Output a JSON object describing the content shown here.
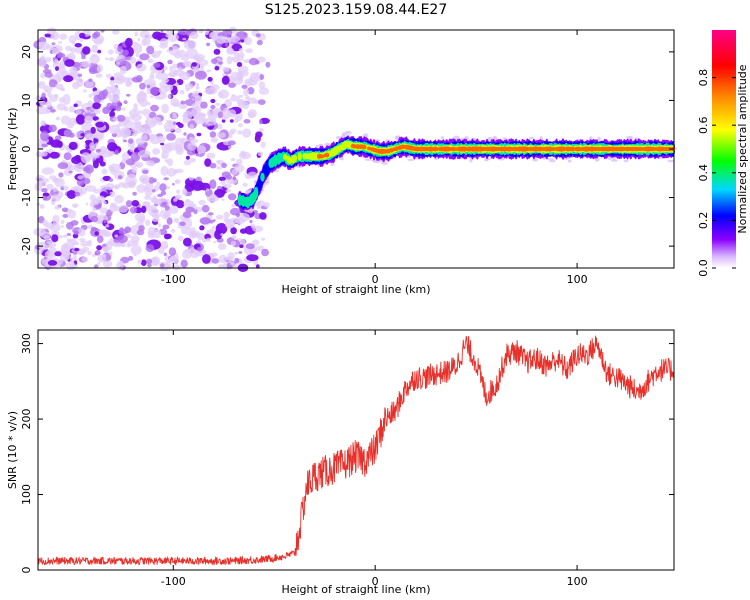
{
  "title": "S125.2023.159.08.44.E27",
  "chart_data": [
    {
      "type": "heatmap",
      "xlabel": "Height of straight line (km)",
      "ylabel": "Frequency (Hz)",
      "xlim": [
        -167,
        148
      ],
      "ylim": [
        -24.5,
        24.5
      ],
      "xticks": [
        -100,
        0,
        100
      ],
      "xtick_labels": [
        "-100",
        "0",
        "100"
      ],
      "yticks": [
        -20,
        -10,
        0,
        10,
        20
      ],
      "ytick_labels": [
        "-20",
        "-10",
        "0",
        "10",
        "20"
      ],
      "grid": false,
      "colorbar": {
        "label": "Normalized spectral amplitude",
        "range": [
          0,
          1
        ],
        "ticks": [
          0.0,
          0.2,
          0.4,
          0.6,
          0.8
        ],
        "tick_labels": [
          "0.0",
          "0.2",
          "0.4",
          "0.6",
          "0.8"
        ],
        "colormap": [
          "#ffffff",
          "#8a00ff",
          "#0000ff",
          "#00d8ff",
          "#00ff00",
          "#ffff00",
          "#ff8800",
          "#ff0000",
          "#ff00aa"
        ]
      },
      "noise_region_x": [
        -167,
        -52
      ],
      "ridge": {
        "x": [
          -67,
          -63,
          -60,
          -57,
          -55,
          -52,
          -48,
          -45,
          -42,
          -38,
          -34,
          -30,
          -26,
          -22,
          -18,
          -14,
          -10,
          -6,
          -2,
          2,
          6,
          10,
          14,
          20,
          40,
          60,
          68,
          80,
          95,
          105,
          110,
          120,
          130,
          140,
          148
        ],
        "y": [
          -10.5,
          -11,
          -10,
          -7,
          -5,
          -3,
          -2,
          -1.5,
          -2.5,
          -1.5,
          -1.5,
          -1.5,
          -1.5,
          -1,
          0,
          1,
          0.5,
          0.5,
          0,
          -0.5,
          -0.5,
          0,
          0.5,
          0,
          0,
          0,
          0,
          0,
          0,
          0,
          0,
          0,
          0,
          0,
          0
        ],
        "peak": [
          0.55,
          0.5,
          0.45,
          0.4,
          0.4,
          0.45,
          0.55,
          0.6,
          0.55,
          0.6,
          0.7,
          0.75,
          0.8,
          0.75,
          0.7,
          0.7,
          0.75,
          0.85,
          0.9,
          0.95,
          0.9,
          0.85,
          0.85,
          0.9,
          0.92,
          0.93,
          0.95,
          0.93,
          0.92,
          0.9,
          0.92,
          0.93,
          0.92,
          0.93,
          0.9
        ]
      }
    },
    {
      "type": "line",
      "xlabel": "Height of straight line (km)",
      "ylabel": "SNR (10 * v/v)",
      "xlim": [
        -167,
        148
      ],
      "ylim": [
        0,
        318
      ],
      "xticks": [
        -100,
        0,
        100
      ],
      "xtick_labels": [
        "-100",
        "0",
        "100"
      ],
      "yticks": [
        0,
        100,
        200,
        300
      ],
      "ytick_labels": [
        "0",
        "100",
        "200",
        "300"
      ],
      "grid": false,
      "color": "#e8302a",
      "series": [
        {
          "x": [
            -167,
            -150,
            -130,
            -110,
            -90,
            -70,
            -55,
            -45,
            -40,
            -37,
            -34,
            -30,
            -25,
            -20,
            -15,
            -10,
            -5,
            0,
            5,
            10,
            15,
            20,
            25,
            30,
            35,
            40,
            45,
            50,
            55,
            60,
            65,
            70,
            75,
            80,
            85,
            90,
            95,
            100,
            105,
            110,
            115,
            120,
            125,
            130,
            135,
            140,
            148
          ],
          "y": [
            12,
            12,
            12,
            12,
            12,
            12,
            14,
            18,
            22,
            60,
            110,
            125,
            130,
            135,
            140,
            150,
            145,
            160,
            200,
            210,
            240,
            255,
            255,
            260,
            262,
            270,
            300,
            275,
            230,
            245,
            285,
            290,
            275,
            280,
            270,
            280,
            265,
            285,
            285,
            300,
            260,
            255,
            245,
            235,
            250,
            265,
            265
          ]
        }
      ]
    }
  ]
}
